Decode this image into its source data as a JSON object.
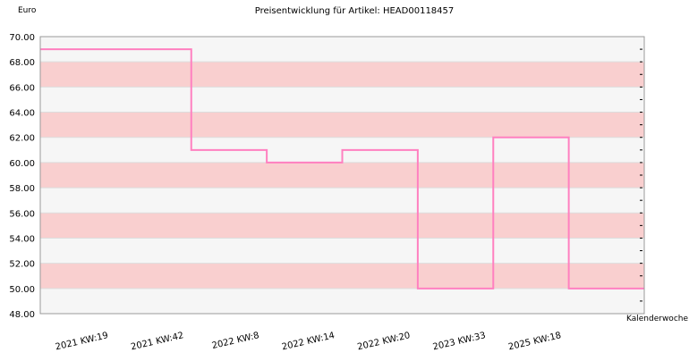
{
  "chart_data": {
    "type": "line",
    "step": true,
    "title": "Preisentwicklung für Artikel: HEAD00118457",
    "ylabel": "Euro",
    "xlabel": "Kalenderwoche",
    "ylim": [
      48,
      70
    ],
    "yticks": [
      "48.00",
      "50.00",
      "52.00",
      "54.00",
      "56.00",
      "58.00",
      "60.00",
      "62.00",
      "64.00",
      "66.00",
      "68.00",
      "70.00"
    ],
    "categories": [
      "2021 KW:19",
      "2021 KW:42",
      "2022 KW:8",
      "2022 KW:14",
      "2022 KW:20",
      "2023 KW:33",
      "2025 KW:18"
    ],
    "series": [
      {
        "values": [
          69,
          61,
          60,
          61,
          50,
          62,
          50
        ]
      }
    ],
    "colors": {
      "line": "#ff80c0",
      "band": "#f9cfcf",
      "band_alt": "#f6f6f6",
      "frame": "#999999"
    },
    "grid": true
  }
}
